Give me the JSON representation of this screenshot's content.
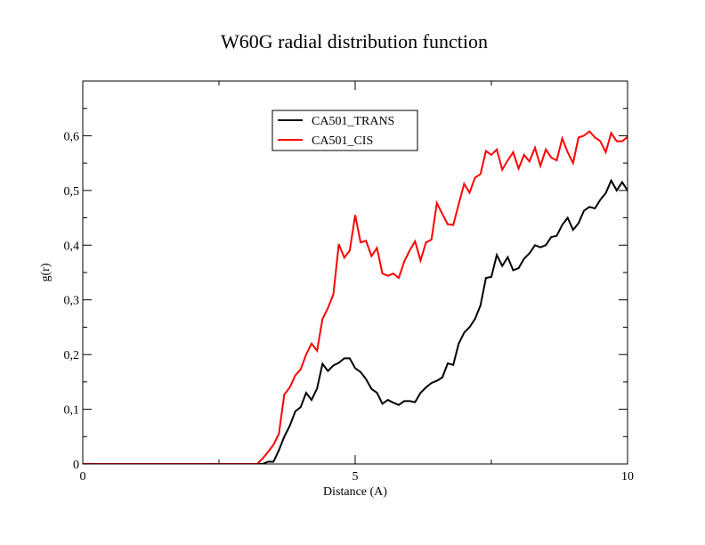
{
  "chart_data": {
    "type": "line",
    "title": "W60G radial distribution function",
    "xlabel": "Distance (A)",
    "ylabel": "g(r)",
    "xlim": [
      0,
      10
    ],
    "ylim": [
      0,
      0.7
    ],
    "x_ticks": [
      {
        "value": 0,
        "label": "0"
      },
      {
        "value": 5,
        "label": "5"
      },
      {
        "value": 10,
        "label": "10"
      }
    ],
    "y_ticks": [
      {
        "value": 0,
        "label": "0"
      },
      {
        "value": 0.1,
        "label": "0,1"
      },
      {
        "value": 0.2,
        "label": "0,2"
      },
      {
        "value": 0.3,
        "label": "0,3"
      },
      {
        "value": 0.4,
        "label": "0,4"
      },
      {
        "value": 0.5,
        "label": "0,5"
      },
      {
        "value": 0.6,
        "label": "0,6"
      }
    ],
    "grid": false,
    "legend_position": "top-center",
    "series": [
      {
        "name": "CA501_TRANS",
        "color": "#000000",
        "points": [
          [
            0,
            0
          ],
          [
            3.3,
            0
          ],
          [
            3.4,
            0.004
          ],
          [
            3.5,
            0.004
          ],
          [
            3.6,
            0.025
          ],
          [
            3.7,
            0.05
          ],
          [
            3.8,
            0.07
          ],
          [
            3.9,
            0.096
          ],
          [
            4.0,
            0.104
          ],
          [
            4.1,
            0.13
          ],
          [
            4.2,
            0.117
          ],
          [
            4.3,
            0.138
          ],
          [
            4.4,
            0.183
          ],
          [
            4.5,
            0.17
          ],
          [
            4.6,
            0.18
          ],
          [
            4.7,
            0.185
          ],
          [
            4.8,
            0.193
          ],
          [
            4.9,
            0.193
          ],
          [
            5.0,
            0.175
          ],
          [
            5.1,
            0.168
          ],
          [
            5.2,
            0.155
          ],
          [
            5.3,
            0.137
          ],
          [
            5.4,
            0.13
          ],
          [
            5.5,
            0.11
          ],
          [
            5.6,
            0.117
          ],
          [
            5.7,
            0.112
          ],
          [
            5.8,
            0.108
          ],
          [
            5.9,
            0.115
          ],
          [
            6.0,
            0.115
          ],
          [
            6.1,
            0.113
          ],
          [
            6.2,
            0.13
          ],
          [
            6.3,
            0.14
          ],
          [
            6.4,
            0.148
          ],
          [
            6.5,
            0.152
          ],
          [
            6.6,
            0.158
          ],
          [
            6.7,
            0.184
          ],
          [
            6.8,
            0.181
          ],
          [
            6.9,
            0.22
          ],
          [
            7.0,
            0.24
          ],
          [
            7.1,
            0.25
          ],
          [
            7.2,
            0.265
          ],
          [
            7.3,
            0.29
          ],
          [
            7.4,
            0.34
          ],
          [
            7.5,
            0.342
          ],
          [
            7.6,
            0.382
          ],
          [
            7.7,
            0.362
          ],
          [
            7.8,
            0.378
          ],
          [
            7.9,
            0.354
          ],
          [
            8.0,
            0.358
          ],
          [
            8.1,
            0.375
          ],
          [
            8.2,
            0.385
          ],
          [
            8.3,
            0.4
          ],
          [
            8.4,
            0.396
          ],
          [
            8.5,
            0.4
          ],
          [
            8.6,
            0.415
          ],
          [
            8.7,
            0.417
          ],
          [
            8.8,
            0.437
          ],
          [
            8.9,
            0.45
          ],
          [
            9.0,
            0.428
          ],
          [
            9.1,
            0.44
          ],
          [
            9.2,
            0.463
          ],
          [
            9.3,
            0.47
          ],
          [
            9.4,
            0.467
          ],
          [
            9.5,
            0.483
          ],
          [
            9.6,
            0.495
          ],
          [
            9.7,
            0.518
          ],
          [
            9.8,
            0.5
          ],
          [
            9.9,
            0.515
          ],
          [
            10.0,
            0.5
          ],
          [
            10.1,
            0.533
          ],
          [
            10.2,
            0.525
          ]
        ]
      },
      {
        "name": "CA501_CIS",
        "color": "#ff0000",
        "points": [
          [
            0,
            0
          ],
          [
            3.2,
            0
          ],
          [
            3.3,
            0.01
          ],
          [
            3.4,
            0.022
          ],
          [
            3.5,
            0.035
          ],
          [
            3.6,
            0.055
          ],
          [
            3.7,
            0.127
          ],
          [
            3.8,
            0.14
          ],
          [
            3.9,
            0.162
          ],
          [
            4.0,
            0.173
          ],
          [
            4.1,
            0.2
          ],
          [
            4.2,
            0.22
          ],
          [
            4.3,
            0.207
          ],
          [
            4.4,
            0.265
          ],
          [
            4.5,
            0.285
          ],
          [
            4.6,
            0.31
          ],
          [
            4.7,
            0.402
          ],
          [
            4.8,
            0.377
          ],
          [
            4.9,
            0.39
          ],
          [
            5.0,
            0.455
          ],
          [
            5.1,
            0.405
          ],
          [
            5.2,
            0.408
          ],
          [
            5.3,
            0.38
          ],
          [
            5.4,
            0.395
          ],
          [
            5.5,
            0.348
          ],
          [
            5.6,
            0.344
          ],
          [
            5.7,
            0.348
          ],
          [
            5.8,
            0.34
          ],
          [
            5.9,
            0.37
          ],
          [
            6.0,
            0.39
          ],
          [
            6.1,
            0.407
          ],
          [
            6.2,
            0.372
          ],
          [
            6.3,
            0.405
          ],
          [
            6.4,
            0.41
          ],
          [
            6.5,
            0.477
          ],
          [
            6.6,
            0.457
          ],
          [
            6.7,
            0.438
          ],
          [
            6.8,
            0.437
          ],
          [
            6.9,
            0.475
          ],
          [
            7.0,
            0.512
          ],
          [
            7.1,
            0.496
          ],
          [
            7.2,
            0.523
          ],
          [
            7.3,
            0.53
          ],
          [
            7.4,
            0.572
          ],
          [
            7.5,
            0.565
          ],
          [
            7.6,
            0.575
          ],
          [
            7.7,
            0.538
          ],
          [
            7.8,
            0.555
          ],
          [
            7.9,
            0.57
          ],
          [
            8.0,
            0.54
          ],
          [
            8.1,
            0.565
          ],
          [
            8.2,
            0.553
          ],
          [
            8.3,
            0.578
          ],
          [
            8.4,
            0.545
          ],
          [
            8.5,
            0.575
          ],
          [
            8.6,
            0.56
          ],
          [
            8.7,
            0.555
          ],
          [
            8.8,
            0.595
          ],
          [
            8.9,
            0.57
          ],
          [
            9.0,
            0.55
          ],
          [
            9.1,
            0.597
          ],
          [
            9.2,
            0.6
          ],
          [
            9.3,
            0.608
          ],
          [
            9.4,
            0.597
          ],
          [
            9.5,
            0.59
          ],
          [
            9.6,
            0.57
          ],
          [
            9.7,
            0.605
          ],
          [
            9.8,
            0.59
          ],
          [
            9.9,
            0.59
          ],
          [
            10.0,
            0.598
          ],
          [
            10.1,
            0.608
          ]
        ]
      }
    ]
  }
}
